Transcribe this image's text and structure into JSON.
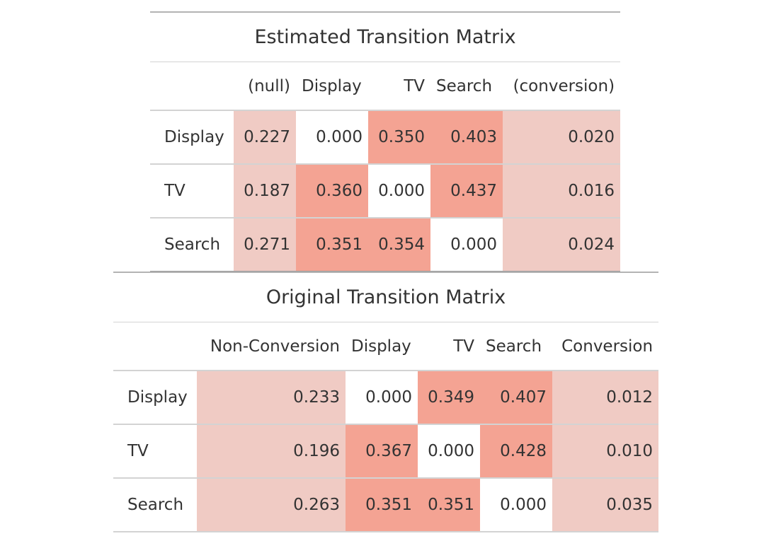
{
  "tables": [
    {
      "title": "Estimated Transition Matrix",
      "columns": [
        "",
        "(null)",
        "Display",
        "TV",
        "Search",
        "(conversion)"
      ],
      "rows": [
        {
          "label": "Display",
          "values": [
            "0.227",
            "0.000",
            "0.350",
            "0.403",
            "0.020"
          ]
        },
        {
          "label": "TV",
          "values": [
            "0.187",
            "0.360",
            "0.000",
            "0.437",
            "0.016"
          ]
        },
        {
          "label": "Search",
          "values": [
            "0.271",
            "0.351",
            "0.354",
            "0.000",
            "0.024"
          ]
        }
      ]
    },
    {
      "title": "Original Transition Matrix",
      "columns": [
        "",
        "Non-Conversion",
        "Display",
        "TV",
        "Search",
        "Conversion"
      ],
      "rows": [
        {
          "label": "Display",
          "values": [
            "0.233",
            "0.000",
            "0.349",
            "0.407",
            "0.012"
          ]
        },
        {
          "label": "TV",
          "values": [
            "0.196",
            "0.367",
            "0.000",
            "0.428",
            "0.010"
          ]
        },
        {
          "label": "Search",
          "values": [
            "0.263",
            "0.351",
            "0.351",
            "0.000",
            "0.035"
          ]
        }
      ]
    }
  ],
  "colors": {
    "pale": "#f0cbc4",
    "strong": "#f4a393",
    "zero": "#ffffff"
  }
}
